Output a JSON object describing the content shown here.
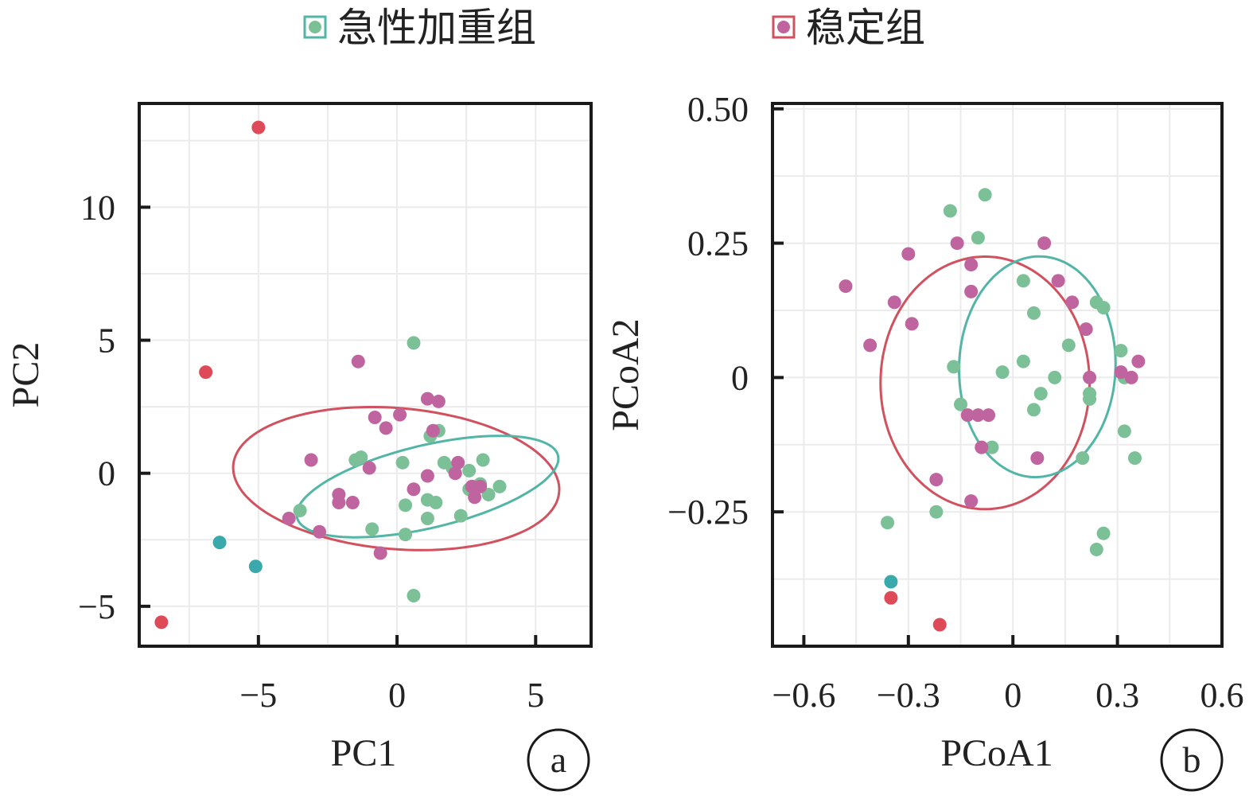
{
  "legend": {
    "items": [
      {
        "label": "急性加重组",
        "color": "#7cc097"
      },
      {
        "label": "稳定组",
        "color": "#c0649f"
      }
    ]
  },
  "colors": {
    "exacerbation": "#7cc097",
    "stable": "#c0649f",
    "ellipse_exacerbation": "#52b5a6",
    "ellipse_stable": "#d1515f",
    "outlier_exacerbation": "#3aa9ac",
    "outlier_stable": "#df4a58"
  },
  "chart_data": [
    {
      "type": "scatter",
      "panel_label": "a",
      "xlabel": "PC1",
      "ylabel": "PC2",
      "xlim": [
        -9.3,
        7.0
      ],
      "ylim": [
        -6.5,
        13.9
      ],
      "xticks": [
        -5,
        0,
        5
      ],
      "yticks": [
        -5,
        0,
        5,
        10
      ],
      "xtick_labels": [
        "−5",
        "0",
        "5"
      ],
      "ytick_labels": [
        "−5",
        "0",
        "5",
        "10"
      ],
      "grid": true,
      "series": [
        {
          "name": "急性加重组",
          "points": [
            [
              0.6,
              4.9
            ],
            [
              1.2,
              1.4
            ],
            [
              1.5,
              1.6
            ],
            [
              -1.5,
              0.5
            ],
            [
              -1.3,
              0.6
            ],
            [
              0.2,
              0.4
            ],
            [
              1.7,
              0.4
            ],
            [
              2.0,
              0.2
            ],
            [
              2.6,
              0.1
            ],
            [
              3.1,
              0.5
            ],
            [
              2.6,
              -0.6
            ],
            [
              3.0,
              -0.4
            ],
            [
              3.3,
              -0.8
            ],
            [
              3.7,
              -0.5
            ],
            [
              0.3,
              -1.2
            ],
            [
              1.1,
              -1.0
            ],
            [
              1.4,
              -1.1
            ],
            [
              2.3,
              -1.6
            ],
            [
              1.1,
              -1.7
            ],
            [
              -0.9,
              -2.1
            ],
            [
              0.3,
              -2.3
            ],
            [
              -3.5,
              -1.4
            ],
            [
              0.6,
              -4.6
            ]
          ]
        },
        {
          "name": "稳定组",
          "points": [
            [
              -1.4,
              4.2
            ],
            [
              1.1,
              2.8
            ],
            [
              1.5,
              2.7
            ],
            [
              -0.8,
              2.1
            ],
            [
              0.1,
              2.2
            ],
            [
              -0.4,
              1.7
            ],
            [
              1.3,
              1.6
            ],
            [
              -3.1,
              0.5
            ],
            [
              -1.0,
              0.2
            ],
            [
              2.2,
              0.4
            ],
            [
              2.1,
              0.0
            ],
            [
              1.1,
              -0.1
            ],
            [
              0.6,
              -0.6
            ],
            [
              2.7,
              -0.5
            ],
            [
              3.0,
              -0.5
            ],
            [
              2.8,
              -0.9
            ],
            [
              -2.1,
              -0.8
            ],
            [
              -2.1,
              -1.1
            ],
            [
              -1.6,
              -1.1
            ],
            [
              -3.9,
              -1.7
            ],
            [
              -2.8,
              -2.2
            ],
            [
              -0.6,
              -3.0
            ]
          ]
        }
      ],
      "outliers": [
        {
          "group": "稳定组",
          "x": -5.0,
          "y": 13.0
        },
        {
          "group": "稳定组",
          "x": -6.9,
          "y": 3.8
        },
        {
          "group": "稳定组",
          "x": -8.5,
          "y": -5.6
        },
        {
          "group": "急性加重组",
          "x": -6.4,
          "y": -2.6
        },
        {
          "group": "急性加重组",
          "x": -5.1,
          "y": -3.5
        }
      ],
      "ellipses": [
        {
          "group": "稳定组",
          "cx": -0.03,
          "cy": -0.2,
          "rx": 11.8,
          "ry": 5.3,
          "angle_deg": -5
        },
        {
          "group": "急性加重组",
          "cx": 1.1,
          "cy": -0.5,
          "rx": 9.7,
          "ry": 3.1,
          "angle_deg": 14
        }
      ]
    },
    {
      "type": "scatter",
      "panel_label": "b",
      "xlabel": "PCoA1",
      "ylabel": "PCoA2",
      "xlim": [
        -0.69,
        0.6
      ],
      "ylim": [
        -0.5,
        0.51
      ],
      "xticks": [
        -0.6,
        -0.3,
        0,
        0.3,
        0.6
      ],
      "yticks": [
        0.5,
        0.25,
        0,
        -0.25
      ],
      "xtick_labels": [
        "−0.6",
        "−0.3",
        "0",
        "0.3",
        "0.6"
      ],
      "ytick_labels": [
        "0.50",
        "0.25",
        "0",
        "−0.25"
      ],
      "grid": true,
      "series": [
        {
          "name": "急性加重组",
          "points": [
            [
              -0.18,
              0.31
            ],
            [
              -0.08,
              0.34
            ],
            [
              -0.1,
              0.26
            ],
            [
              0.03,
              0.18
            ],
            [
              0.06,
              0.12
            ],
            [
              0.24,
              0.14
            ],
            [
              0.26,
              0.13
            ],
            [
              0.16,
              0.06
            ],
            [
              0.31,
              0.05
            ],
            [
              -0.17,
              0.02
            ],
            [
              -0.03,
              0.01
            ],
            [
              0.03,
              0.03
            ],
            [
              0.12,
              0.0
            ],
            [
              0.32,
              0.0
            ],
            [
              -0.15,
              -0.05
            ],
            [
              0.08,
              -0.03
            ],
            [
              0.22,
              -0.03
            ],
            [
              0.22,
              -0.04
            ],
            [
              0.06,
              -0.06
            ],
            [
              0.32,
              -0.1
            ],
            [
              -0.06,
              -0.13
            ],
            [
              0.2,
              -0.15
            ],
            [
              0.35,
              -0.15
            ],
            [
              -0.22,
              -0.25
            ],
            [
              -0.36,
              -0.27
            ],
            [
              0.26,
              -0.29
            ],
            [
              0.24,
              -0.32
            ]
          ]
        },
        {
          "name": "稳定组",
          "points": [
            [
              0.09,
              0.25
            ],
            [
              -0.16,
              0.25
            ],
            [
              -0.12,
              0.21
            ],
            [
              -0.3,
              0.23
            ],
            [
              -0.12,
              0.16
            ],
            [
              -0.48,
              0.17
            ],
            [
              0.13,
              0.18
            ],
            [
              -0.34,
              0.14
            ],
            [
              0.17,
              0.14
            ],
            [
              -0.29,
              0.1
            ],
            [
              0.21,
              0.09
            ],
            [
              -0.41,
              0.06
            ],
            [
              0.36,
              0.03
            ],
            [
              0.31,
              0.01
            ],
            [
              0.22,
              0.0
            ],
            [
              0.34,
              0.0
            ],
            [
              -0.13,
              -0.07
            ],
            [
              -0.1,
              -0.07
            ],
            [
              -0.07,
              -0.07
            ],
            [
              -0.09,
              -0.13
            ],
            [
              0.07,
              -0.15
            ],
            [
              -0.22,
              -0.19
            ],
            [
              -0.12,
              -0.23
            ]
          ]
        }
      ],
      "outliers": [
        {
          "group": "急性加重组",
          "x": -0.35,
          "y": -0.38
        },
        {
          "group": "稳定组",
          "x": -0.35,
          "y": -0.41
        },
        {
          "group": "稳定组",
          "x": -0.21,
          "y": -0.46
        }
      ],
      "ellipses": [
        {
          "group": "稳定组",
          "cx": -0.08,
          "cy": -0.01,
          "rx": 0.6,
          "ry": 0.47,
          "angle_deg": 0
        },
        {
          "group": "急性加重组",
          "cx": 0.07,
          "cy": 0.02,
          "rx": 0.45,
          "ry": 0.41,
          "angle_deg": 8
        }
      ]
    }
  ]
}
